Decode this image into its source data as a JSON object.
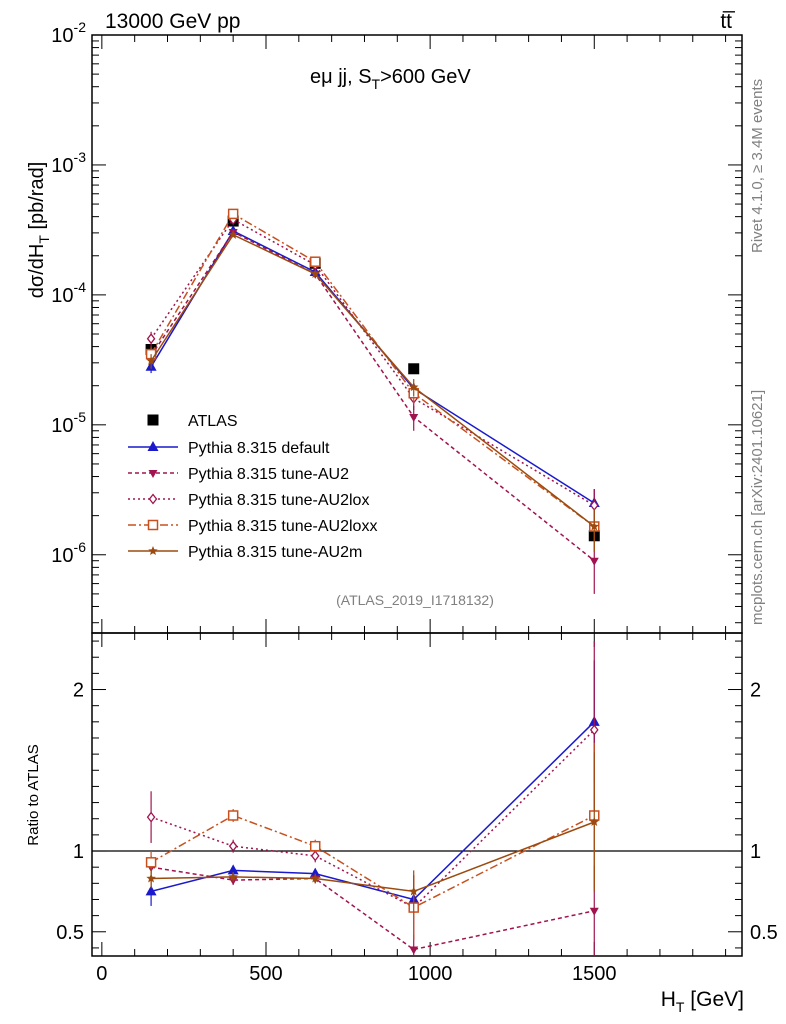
{
  "header": {
    "energy_label": "13000 GeV pp",
    "process_label": "tt̅",
    "side_label_rivet": "Rivet 4.1.0, ≥ 3.4M events",
    "side_label_mcplots": "mcplots.cern.ch [arXiv:2401.10621]",
    "analysis_id": "(ATLAS_2019_I1718132)"
  },
  "colors": {
    "ATLAS": "#000000",
    "default": "#1a1acc",
    "AU2": "#a0134f",
    "AU2lox": "#a0134f",
    "AU2loxx": "#c8501e",
    "AU2m": "#9b4b0f"
  },
  "chart_data": [
    {
      "type": "line",
      "panel": "main",
      "title": "eμ jj, S_T>600 GeV",
      "title_main": "eμ jj, S",
      "title_sub": "T",
      "title_rest": ">600 GeV",
      "ylabel": "dσ/dH_T [pb/rad]",
      "ylabel_main": "dσ/dH",
      "ylabel_sub": "T",
      "ylabel_rest": " [pb/rad]",
      "yscale": "log",
      "ylim": [
        2.5e-07,
        0.01
      ],
      "xlim": [
        -30,
        1950
      ],
      "y_ticks": [
        {
          "value": 0.01,
          "base": "10",
          "exp": "-2"
        },
        {
          "value": 0.001,
          "base": "10",
          "exp": "-3"
        },
        {
          "value": 0.0001,
          "base": "10",
          "exp": "-4"
        },
        {
          "value": 1e-05,
          "base": "10",
          "exp": "-5"
        },
        {
          "value": 1e-06,
          "base": "10",
          "exp": "-6"
        }
      ],
      "x": [
        150,
        400,
        650,
        950,
        1500
      ],
      "series": [
        {
          "key": "ATLAS",
          "name": "ATLAS",
          "values": [
            3.8e-05,
            0.00037,
            0.000175,
            2.7e-05,
            1.4e-06
          ],
          "errors": [
            0,
            0,
            0,
            0,
            0
          ]
        },
        {
          "key": "default",
          "name": "Pythia 8.315 default",
          "values": [
            2.8e-05,
            0.00031,
            0.00015,
            1.9e-05,
            2.5e-06
          ],
          "errors": [
            3e-06,
            1e-05,
            5e-06,
            2e-06,
            7e-07
          ]
        },
        {
          "key": "AU2",
          "name": "Pythia 8.315 tune-AU2",
          "values": [
            3.4e-05,
            0.000305,
            0.000145,
            1.15e-05,
            9e-07
          ],
          "errors": [
            5e-06,
            1e-05,
            6e-06,
            2.5e-06,
            4e-07
          ]
        },
        {
          "key": "AU2lox",
          "name": "Pythia 8.315 tune-AU2lox",
          "values": [
            4.6e-05,
            0.00038,
            0.00017,
            1.6e-05,
            2.4e-06
          ],
          "errors": [
            6e-06,
            1.5e-05,
            6e-06,
            3e-06,
            8e-07
          ]
        },
        {
          "key": "AU2loxx",
          "name": "Pythia 8.315 tune-AU2loxx",
          "values": [
            3.5e-05,
            0.00042,
            0.00018,
            1.75e-05,
            1.65e-06
          ],
          "errors": [
            5e-06,
            1.5e-05,
            6e-06,
            3e-06,
            6e-07
          ]
        },
        {
          "key": "AU2m",
          "name": "Pythia 8.315 tune-AU2m",
          "values": [
            3.1e-05,
            0.00029,
            0.000145,
            1.95e-05,
            1.65e-06
          ],
          "errors": [
            4e-06,
            1e-05,
            5e-06,
            3e-06,
            6e-07
          ]
        }
      ]
    },
    {
      "type": "line",
      "panel": "ratio",
      "ylabel": "Ratio to ATLAS",
      "ylim": [
        0.35,
        2.35
      ],
      "xlim": [
        -30,
        1950
      ],
      "xlabel": "H_T [GeV]",
      "xlabel_main": "H",
      "xlabel_sub": "T",
      "xlabel_rest": " [GeV]",
      "reference_line": 1,
      "y_ticks": [
        {
          "value": 0.5,
          "label": "0.5"
        },
        {
          "value": 1,
          "label": "1"
        },
        {
          "value": 2,
          "label": "2"
        }
      ],
      "x_ticks": [
        {
          "value": 0,
          "label": "0"
        },
        {
          "value": 500,
          "label": "500"
        },
        {
          "value": 1000,
          "label": "1000"
        },
        {
          "value": 1500,
          "label": "1500"
        }
      ],
      "x": [
        150,
        400,
        650,
        950,
        1500
      ],
      "series": [
        {
          "key": "default",
          "name": "Pythia 8.315 default",
          "values": [
            0.75,
            0.88,
            0.86,
            0.7,
            1.8
          ],
          "errors": [
            0.09,
            0.03,
            0.03,
            0.07,
            0.38
          ]
        },
        {
          "key": "AU2",
          "name": "Pythia 8.315 tune-AU2",
          "values": [
            0.9,
            0.82,
            0.83,
            0.39,
            0.63
          ],
          "errors": [
            0.07,
            0.03,
            0.03,
            0.09,
            0.28
          ]
        },
        {
          "key": "AU2lox",
          "name": "Pythia 8.315 tune-AU2lox",
          "values": [
            1.21,
            1.03,
            0.97,
            0.65,
            1.75
          ],
          "errors": [
            0.16,
            0.04,
            0.04,
            0.2,
            0.55
          ]
        },
        {
          "key": "AU2loxx",
          "name": "Pythia 8.315 tune-AU2loxx",
          "values": [
            0.93,
            1.22,
            1.03,
            0.65,
            1.22
          ],
          "errors": [
            0.07,
            0.04,
            0.04,
            0.2,
            0.45
          ]
        },
        {
          "key": "AU2m",
          "name": "Pythia 8.315 tune-AU2m",
          "values": [
            0.83,
            0.84,
            0.83,
            0.75,
            1.18
          ],
          "errors": [
            0.06,
            0.03,
            0.03,
            0.13,
            0.43
          ]
        }
      ]
    }
  ]
}
